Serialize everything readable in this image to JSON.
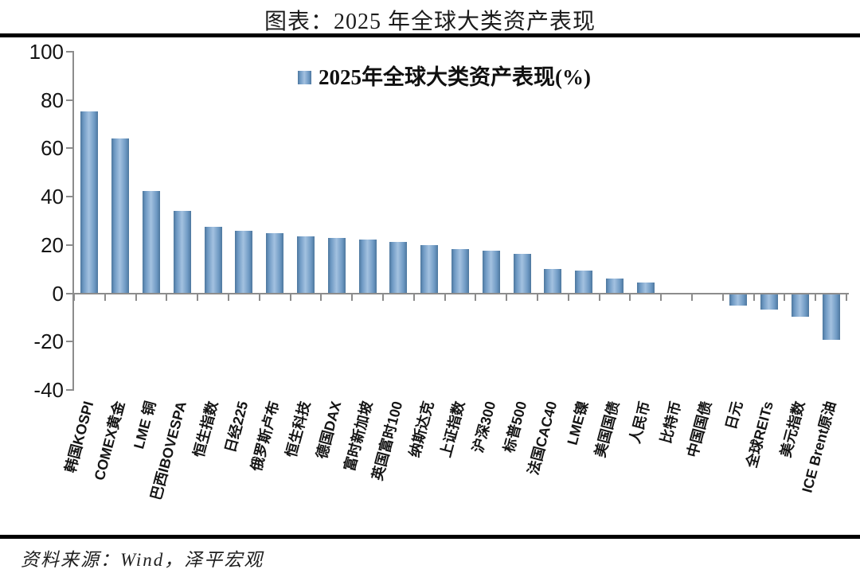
{
  "title": "图表：2025 年全球大类资产表现",
  "legend": {
    "label": "2025年全球大类资产表现(%)"
  },
  "source": "资料来源：Wind，泽平宏观",
  "colors": {
    "bar_center": "#a3c1e0",
    "bar_mid": "#6f9ac4",
    "bar_edge": "#4d779e",
    "axis": "#8c8c8c",
    "rule": "#000000",
    "text": "#141414"
  },
  "chart_data": {
    "type": "bar",
    "title": "图表：2025 年全球大类资产表现",
    "legend": "2025年全球大类资产表现(%)",
    "legend_position": "top-center",
    "xlabel": "",
    "ylabel": "",
    "ylim": [
      -40,
      100
    ],
    "yticks": [
      100,
      80,
      60,
      40,
      20,
      0,
      -20,
      -40
    ],
    "grid": false,
    "categories": [
      "韩国KOSPI",
      "COMEX黄金",
      "LME 铜",
      "巴西IBOVESPA",
      "恒生指数",
      "日经225",
      "俄罗斯卢布",
      "恒生科技",
      "德国DAX",
      "富时新加坡",
      "英国富时100",
      "纳斯达克",
      "上证指数",
      "沪深300",
      "标普500",
      "法国CAC40",
      "LME镍",
      "美国国债",
      "人民币",
      "比特币",
      "中国国债",
      "日元",
      "全球REITs",
      "美元指数",
      "ICE Brent原油"
    ],
    "values": [
      75.4,
      64.0,
      42.2,
      34.0,
      27.6,
      26.0,
      24.8,
      23.5,
      22.8,
      22.3,
      21.4,
      20.1,
      18.4,
      17.7,
      16.2,
      10.2,
      9.4,
      6.0,
      4.4,
      0,
      0,
      -4.9,
      -6.4,
      -9.4,
      -19.0
    ],
    "source": "资料来源：Wind，泽平宏观"
  }
}
